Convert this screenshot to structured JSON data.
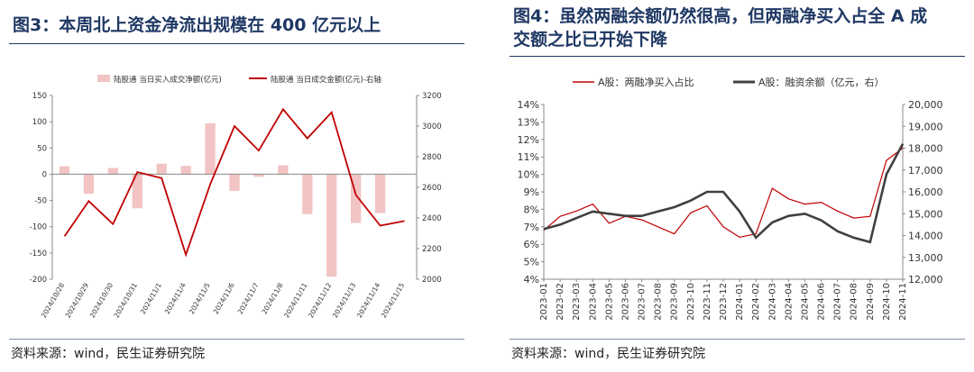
{
  "left": {
    "title": "图3：本周北上资金净流出规模在 400 亿元以上",
    "source": "资料来源：wind，民生证券研究院"
  },
  "right": {
    "title_line1": "图4：虽然两融余额仍然很高，但两融净买入占全 A 成",
    "title_line2": "交额之比已开始下降",
    "source": "资料来源：wind，民生证券研究院"
  },
  "chart_data": [
    {
      "type": "bar",
      "categories": [
        "2024/10/28",
        "2024/10/29",
        "2024/10/30",
        "2024/10/31",
        "2024/11/1",
        "2024/11/4",
        "2024/11/5",
        "2024/11/6",
        "2024/11/7",
        "2024/11/8",
        "2024/11/11",
        "2024/11/12",
        "2024/11/13",
        "2024/11/14",
        "2024/11/15"
      ],
      "series": [
        {
          "name": "陆股通 当日买入成交净额(亿元)",
          "kind": "bar",
          "axis": "left",
          "color": "#f2c4c4",
          "values": [
            15,
            -37,
            12,
            -65,
            20,
            16,
            97,
            -32,
            -5,
            17,
            -76,
            -195,
            -93,
            -74,
            0
          ]
        },
        {
          "name": "陆股通 当日成交金额(亿元)-右轴",
          "kind": "line",
          "axis": "right",
          "color": "#c00000",
          "values": [
            2280,
            2510,
            2360,
            2700,
            2660,
            2160,
            2620,
            3000,
            2840,
            3110,
            2920,
            3090,
            2550,
            2350,
            2380
          ]
        }
      ],
      "ylim_left": [
        -200,
        150
      ],
      "yticks_left": [
        -200,
        -150,
        -100,
        -50,
        0,
        50,
        100,
        150
      ],
      "ylim_right": [
        2000,
        3200
      ],
      "yticks_right": [
        2000,
        2200,
        2400,
        2600,
        2800,
        3000,
        3200
      ],
      "legend_position": "top",
      "grid": false
    },
    {
      "type": "line",
      "x_start": "2023-01",
      "x_end": "2024-11",
      "x_tick_labels": [
        "2023-01",
        "2023-02",
        "2023-03",
        "2023-04",
        "2023-05",
        "2023-06",
        "2023-07",
        "2023-08",
        "2023-09",
        "2023-10",
        "2023-11",
        "2023-12",
        "2024-01",
        "2024-02",
        "2024-03",
        "2024-04",
        "2024-05",
        "2024-06",
        "2024-07",
        "2024-08",
        "2024-09",
        "2024-10",
        "2024-11"
      ],
      "ylim_left": [
        4,
        14
      ],
      "yticks_left": [
        "4%",
        "5%",
        "6%",
        "7%",
        "8%",
        "9%",
        "10%",
        "11%",
        "12%",
        "13%",
        "14%"
      ],
      "ylim_right": [
        12000,
        20000
      ],
      "yticks_right": [
        "12,000",
        "13,000",
        "14,000",
        "15,000",
        "16,000",
        "17,000",
        "18,000",
        "19,000",
        "20,000"
      ],
      "legend_position": "top",
      "grid": false,
      "series": [
        {
          "name": "A股：两融净买入占比",
          "axis": "left",
          "color": "#c00000",
          "x": [
            "2023-01",
            "2023-02",
            "2023-03",
            "2023-04",
            "2023-05",
            "2023-06",
            "2023-07",
            "2023-08",
            "2023-09",
            "2023-10",
            "2023-11",
            "2023-12",
            "2024-01",
            "2024-02",
            "2024-03",
            "2024-04",
            "2024-05",
            "2024-06",
            "2024-07",
            "2024-08",
            "2024-09",
            "2024-10",
            "2024-11"
          ],
          "values": [
            6.8,
            7.6,
            7.9,
            8.3,
            7.2,
            7.6,
            7.4,
            7.0,
            6.6,
            7.8,
            8.2,
            7.0,
            6.4,
            6.6,
            9.2,
            8.6,
            8.3,
            8.4,
            7.9,
            7.5,
            7.6,
            10.8,
            11.5
          ]
        },
        {
          "name": "A股：融资余额（亿元，右）",
          "axis": "right",
          "color": "#404040",
          "x": [
            "2023-01",
            "2023-02",
            "2023-03",
            "2023-04",
            "2023-05",
            "2023-06",
            "2023-07",
            "2023-08",
            "2023-09",
            "2023-10",
            "2023-11",
            "2023-12",
            "2024-01",
            "2024-02",
            "2024-03",
            "2024-04",
            "2024-05",
            "2024-06",
            "2024-07",
            "2024-08",
            "2024-09",
            "2024-10",
            "2024-11"
          ],
          "values": [
            14300,
            14500,
            14800,
            15100,
            15000,
            14900,
            14900,
            15100,
            15300,
            15600,
            16000,
            16000,
            15100,
            13900,
            14600,
            14900,
            15000,
            14700,
            14200,
            13900,
            13700,
            16800,
            18200
          ]
        }
      ]
    }
  ]
}
